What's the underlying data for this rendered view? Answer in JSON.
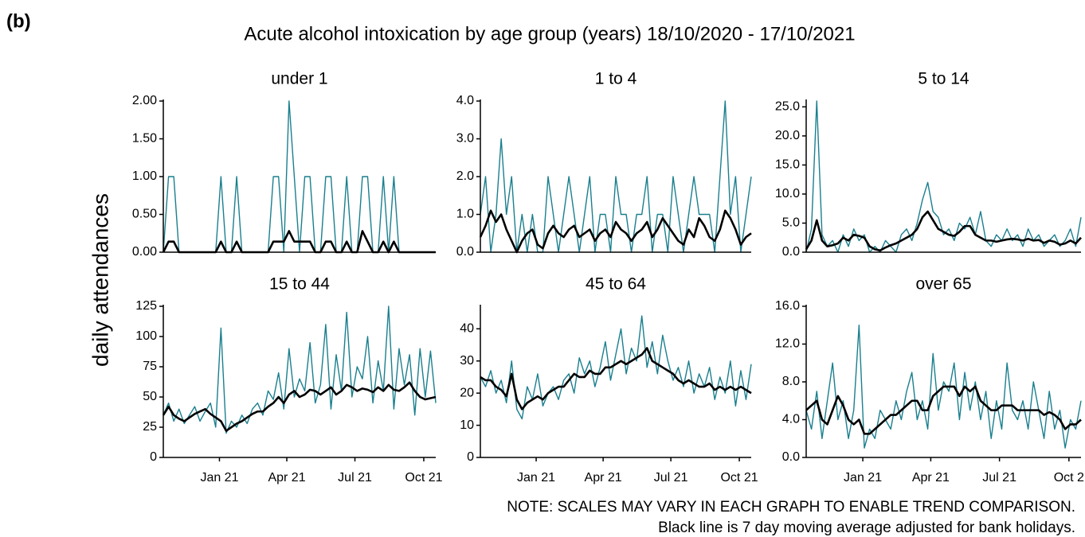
{
  "figure_label": "(b)",
  "title": "Acute alcohol intoxication by age group (years) 18/10/2020 - 17/10/2021",
  "y_label": "daily attendances",
  "notes": [
    "NOTE: SCALES MAY VARY IN EACH GRAPH TO ENABLE TREND COMPARISON.",
    "Black line is 7 day moving average adjusted for bank holidays."
  ],
  "chart_data": [
    {
      "type": "line",
      "title": "under 1",
      "x": [
        0,
        7,
        14,
        21,
        28,
        35,
        42,
        49,
        56,
        63,
        70,
        77,
        84,
        91,
        98,
        105,
        112,
        119,
        126,
        133,
        140,
        147,
        154,
        161,
        168,
        175,
        182,
        189,
        196,
        203,
        210,
        217,
        224,
        231,
        238,
        245,
        252,
        259,
        266,
        273,
        280,
        287,
        294,
        301,
        308,
        315,
        322,
        329,
        336,
        343,
        350,
        357,
        364
      ],
      "xlim": [
        0,
        364
      ],
      "ylim": [
        0,
        2
      ],
      "yticks": [
        {
          "value": 0,
          "label": "0.00"
        },
        {
          "value": 0.5,
          "label": "0.50"
        },
        {
          "value": 1,
          "label": "1.00"
        },
        {
          "value": 1.5,
          "label": "1.50"
        },
        {
          "value": 2,
          "label": "2.00"
        }
      ],
      "series": [
        {
          "color": "#1a7f8e",
          "values": [
            0,
            1,
            1,
            0,
            0,
            0,
            0,
            0,
            0,
            0,
            0,
            1,
            0,
            0,
            1,
            0,
            0,
            0,
            0,
            0,
            0,
            1,
            1,
            0,
            2,
            1,
            0,
            1,
            1,
            0,
            0,
            1,
            1,
            0,
            0,
            1,
            0,
            0,
            1,
            1,
            0,
            0,
            1,
            0,
            1,
            0,
            0,
            0,
            0,
            0,
            0,
            0,
            0
          ]
        },
        {
          "color": "#000000",
          "values": [
            0,
            0.14,
            0.14,
            0,
            0,
            0,
            0,
            0,
            0,
            0,
            0,
            0.14,
            0,
            0,
            0.14,
            0,
            0,
            0,
            0,
            0,
            0,
            0.14,
            0.14,
            0.14,
            0.28,
            0.14,
            0.14,
            0.14,
            0.14,
            0,
            0,
            0.14,
            0.14,
            0,
            0,
            0.14,
            0,
            0,
            0.28,
            0.14,
            0,
            0,
            0.14,
            0,
            0.14,
            0,
            0,
            0,
            0,
            0,
            0,
            0,
            0
          ]
        }
      ]
    },
    {
      "type": "line",
      "title": "1 to 4",
      "x": [
        0,
        7,
        14,
        21,
        28,
        35,
        42,
        49,
        56,
        63,
        70,
        77,
        84,
        91,
        98,
        105,
        112,
        119,
        126,
        133,
        140,
        147,
        154,
        161,
        168,
        175,
        182,
        189,
        196,
        203,
        210,
        217,
        224,
        231,
        238,
        245,
        252,
        259,
        266,
        273,
        280,
        287,
        294,
        301,
        308,
        315,
        322,
        329,
        336,
        343,
        350,
        357,
        364
      ],
      "xlim": [
        0,
        364
      ],
      "ylim": [
        0,
        4
      ],
      "yticks": [
        {
          "value": 0,
          "label": "0.0"
        },
        {
          "value": 1,
          "label": "1.0"
        },
        {
          "value": 2,
          "label": "2.0"
        },
        {
          "value": 3,
          "label": "3.0"
        },
        {
          "value": 4,
          "label": "4.0"
        }
      ],
      "series": [
        {
          "color": "#1a7f8e",
          "values": [
            1,
            2,
            0,
            1,
            3,
            1,
            2,
            0,
            1,
            0,
            1,
            0,
            0,
            2,
            1,
            0,
            1,
            2,
            1,
            0,
            1,
            2,
            0,
            1,
            1,
            0,
            2,
            1,
            1,
            0,
            1,
            1,
            2,
            0,
            1,
            1,
            0,
            2,
            1,
            0,
            1,
            2,
            1,
            1,
            1,
            0,
            2,
            4,
            1,
            2,
            0,
            1,
            2
          ]
        },
        {
          "color": "#000000",
          "values": [
            0.4,
            0.7,
            1.1,
            0.8,
            1.0,
            0.6,
            0.3,
            0.0,
            0.3,
            0.5,
            0.6,
            0.2,
            0.1,
            0.5,
            0.7,
            0.5,
            0.4,
            0.6,
            0.7,
            0.4,
            0.5,
            0.6,
            0.3,
            0.5,
            0.6,
            0.4,
            0.8,
            0.6,
            0.5,
            0.3,
            0.5,
            0.6,
            0.8,
            0.4,
            0.6,
            0.9,
            0.7,
            0.5,
            0.3,
            0.2,
            0.6,
            0.4,
            0.9,
            0.7,
            0.4,
            0.3,
            0.6,
            1.1,
            0.9,
            0.6,
            0.2,
            0.4,
            0.5
          ]
        }
      ]
    },
    {
      "type": "line",
      "title": "5 to 14",
      "x": [
        0,
        7,
        14,
        21,
        28,
        35,
        42,
        49,
        56,
        63,
        70,
        77,
        84,
        91,
        98,
        105,
        112,
        119,
        126,
        133,
        140,
        147,
        154,
        161,
        168,
        175,
        182,
        189,
        196,
        203,
        210,
        217,
        224,
        231,
        238,
        245,
        252,
        259,
        266,
        273,
        280,
        287,
        294,
        301,
        308,
        315,
        322,
        329,
        336,
        343,
        350,
        357,
        364
      ],
      "xlim": [
        0,
        364
      ],
      "ylim": [
        0,
        26
      ],
      "yticks": [
        {
          "value": 0,
          "label": "0.0"
        },
        {
          "value": 5,
          "label": "5.0"
        },
        {
          "value": 10,
          "label": "10.0"
        },
        {
          "value": 15,
          "label": "15.0"
        },
        {
          "value": 20,
          "label": "20.0"
        },
        {
          "value": 25,
          "label": "25.0"
        }
      ],
      "series": [
        {
          "color": "#1a7f8e",
          "values": [
            0,
            4,
            26,
            3,
            1,
            2,
            0,
            3,
            1,
            4,
            2,
            3,
            0,
            1,
            0,
            2,
            1,
            0,
            3,
            4,
            2,
            5,
            9,
            12,
            7,
            6,
            3,
            4,
            2,
            5,
            4,
            6,
            3,
            7,
            2,
            1,
            3,
            2,
            4,
            2,
            3,
            1,
            4,
            2,
            3,
            1,
            2,
            3,
            1,
            2,
            4,
            1,
            6
          ]
        },
        {
          "color": "#000000",
          "values": [
            0.5,
            2,
            5.5,
            2,
            1,
            1.2,
            1.5,
            2.5,
            2,
            3,
            2.8,
            2.5,
            1.0,
            0.5,
            0.3,
            0.8,
            1.2,
            1.5,
            2,
            2.5,
            3,
            4,
            6,
            7,
            5.5,
            4,
            3.5,
            3,
            2.8,
            3.5,
            4.5,
            4.5,
            3,
            2.5,
            2,
            2,
            1.8,
            2,
            2.2,
            2.3,
            2.2,
            2,
            2.3,
            2,
            2.1,
            1.6,
            2,
            1.8,
            1.3,
            1.5,
            2,
            1.5,
            2.5
          ]
        }
      ]
    },
    {
      "type": "line",
      "title": "15 to 44",
      "x": [
        0,
        7,
        14,
        21,
        28,
        35,
        42,
        49,
        56,
        63,
        70,
        77,
        84,
        91,
        98,
        105,
        112,
        119,
        126,
        133,
        140,
        147,
        154,
        161,
        168,
        175,
        182,
        189,
        196,
        203,
        210,
        217,
        224,
        231,
        238,
        245,
        252,
        259,
        266,
        273,
        280,
        287,
        294,
        301,
        308,
        315,
        322,
        329,
        336,
        343,
        350,
        357,
        364
      ],
      "xlim": [
        0,
        364
      ],
      "xticks": [
        {
          "value": 75,
          "label": "Jan 21"
        },
        {
          "value": 165,
          "label": "Apr 21"
        },
        {
          "value": 256,
          "label": "Jul 21"
        },
        {
          "value": 348,
          "label": "Oct 21"
        }
      ],
      "ylim": [
        0,
        125
      ],
      "yticks": [
        0,
        25,
        50,
        75,
        100,
        125
      ],
      "series": [
        {
          "color": "#1a7f8e",
          "values": [
            35,
            45,
            30,
            40,
            28,
            35,
            42,
            30,
            38,
            45,
            25,
            107,
            20,
            30,
            25,
            35,
            28,
            40,
            45,
            35,
            55,
            48,
            70,
            40,
            90,
            50,
            65,
            55,
            95,
            45,
            60,
            110,
            40,
            85,
            55,
            120,
            50,
            75,
            65,
            100,
            45,
            80,
            55,
            125,
            40,
            90,
            60,
            85,
            35,
            90,
            50,
            88,
            45
          ]
        },
        {
          "color": "#000000",
          "values": [
            35,
            42,
            35,
            32,
            30,
            33,
            36,
            38,
            40,
            36,
            33,
            30,
            22,
            25,
            28,
            30,
            33,
            36,
            38,
            38,
            42,
            45,
            50,
            45,
            52,
            55,
            50,
            52,
            56,
            55,
            52,
            55,
            58,
            52,
            55,
            60,
            58,
            55,
            57,
            56,
            54,
            58,
            55,
            60,
            56,
            55,
            58,
            62,
            55,
            50,
            48,
            49,
            50
          ]
        }
      ]
    },
    {
      "type": "line",
      "title": "45 to 64",
      "x": [
        0,
        7,
        14,
        21,
        28,
        35,
        42,
        49,
        56,
        63,
        70,
        77,
        84,
        91,
        98,
        105,
        112,
        119,
        126,
        133,
        140,
        147,
        154,
        161,
        168,
        175,
        182,
        189,
        196,
        203,
        210,
        217,
        224,
        231,
        238,
        245,
        252,
        259,
        266,
        273,
        280,
        287,
        294,
        301,
        308,
        315,
        322,
        329,
        336,
        343,
        350,
        357,
        364
      ],
      "xlim": [
        0,
        364
      ],
      "xticks": [
        {
          "value": 75,
          "label": "Jan 21"
        },
        {
          "value": 165,
          "label": "Apr 21"
        },
        {
          "value": 256,
          "label": "Jul 21"
        },
        {
          "value": 348,
          "label": "Oct 21"
        }
      ],
      "ylim": [
        0,
        47
      ],
      "yticks": [
        0,
        10,
        20,
        30,
        40
      ],
      "series": [
        {
          "color": "#1a7f8e",
          "values": [
            25,
            22,
            27,
            20,
            24,
            17,
            30,
            15,
            12,
            22,
            18,
            26,
            16,
            20,
            22,
            18,
            24,
            26,
            20,
            31,
            26,
            30,
            22,
            28,
            36,
            24,
            32,
            40,
            26,
            34,
            30,
            44,
            28,
            36,
            26,
            38,
            30,
            24,
            28,
            22,
            30,
            20,
            26,
            22,
            28,
            18,
            25,
            20,
            30,
            16,
            27,
            18,
            29
          ]
        },
        {
          "color": "#000000",
          "values": [
            25,
            24,
            24,
            22,
            21,
            19,
            26,
            18,
            15,
            17,
            18,
            19,
            18,
            20,
            21,
            22,
            22,
            24,
            26,
            25,
            25,
            27,
            26,
            26,
            28,
            28,
            29,
            30,
            29,
            30,
            31,
            32,
            34,
            30,
            29,
            28,
            27,
            26,
            24,
            23,
            24,
            23,
            22,
            22,
            23,
            21,
            22,
            21,
            22,
            21,
            22,
            21,
            20
          ]
        }
      ]
    },
    {
      "type": "line",
      "title": "over 65",
      "x": [
        0,
        7,
        14,
        21,
        28,
        35,
        42,
        49,
        56,
        63,
        70,
        77,
        84,
        91,
        98,
        105,
        112,
        119,
        126,
        133,
        140,
        147,
        154,
        161,
        168,
        175,
        182,
        189,
        196,
        203,
        210,
        217,
        224,
        231,
        238,
        245,
        252,
        259,
        266,
        273,
        280,
        287,
        294,
        301,
        308,
        315,
        322,
        329,
        336,
        343,
        350,
        357,
        364
      ],
      "xlim": [
        0,
        364
      ],
      "xticks": [
        {
          "value": 75,
          "label": "Jan 21"
        },
        {
          "value": 165,
          "label": "Apr 21"
        },
        {
          "value": 256,
          "label": "Jul 21"
        },
        {
          "value": 348,
          "label": "Oct 2"
        }
      ],
      "ylim": [
        0,
        16
      ],
      "yticks": [
        {
          "value": 0,
          "label": "0.0"
        },
        {
          "value": 4,
          "label": "4.0"
        },
        {
          "value": 8,
          "label": "8.0"
        },
        {
          "value": 12,
          "label": "12.0"
        },
        {
          "value": 16,
          "label": "16.0"
        }
      ],
      "series": [
        {
          "color": "#1a7f8e",
          "values": [
            5,
            3,
            7,
            2,
            6,
            10,
            4,
            6,
            2,
            5,
            14,
            1,
            3,
            2,
            5,
            4,
            3,
            6,
            4,
            7,
            9,
            4,
            6,
            3,
            11,
            5,
            8,
            7,
            10,
            4,
            9,
            5,
            8,
            4,
            7,
            2,
            6,
            3,
            10,
            5,
            4,
            6,
            3,
            8,
            5,
            2,
            7,
            3,
            5,
            1,
            4,
            3,
            6
          ]
        },
        {
          "color": "#000000",
          "values": [
            5,
            5.5,
            6,
            4,
            3.5,
            5,
            6.5,
            5.5,
            4,
            3.5,
            4,
            2.5,
            2.5,
            3,
            3.5,
            4,
            4.5,
            4.5,
            5,
            5.5,
            6,
            6,
            5,
            5,
            6.5,
            7,
            7.5,
            7.5,
            7.5,
            6.5,
            7.5,
            7,
            7.5,
            6,
            5.5,
            5,
            5,
            5.5,
            5.5,
            5.5,
            5,
            5,
            5,
            5,
            5,
            4.5,
            4.8,
            4.5,
            4,
            3,
            3.5,
            3.5,
            4
          ]
        }
      ]
    }
  ]
}
